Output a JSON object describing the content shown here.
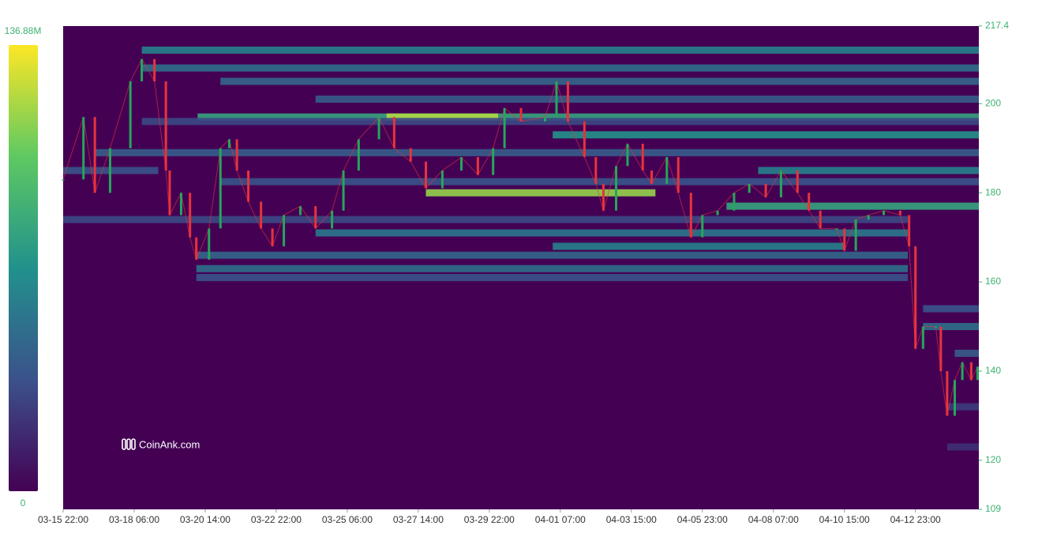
{
  "chart_data": {
    "type": "heatmap",
    "watermark": "CoinAnk.com",
    "colorscale": {
      "min": 0,
      "max": {
        "value": 136.88,
        "label": "136.88M"
      }
    },
    "xlim": [
      0,
      722
    ],
    "xticks": [
      {
        "value": 0,
        "label": "03-15 22:00"
      },
      {
        "value": 56,
        "label": "03-18 06:00"
      },
      {
        "value": 112,
        "label": "03-20 14:00"
      },
      {
        "value": 168,
        "label": "03-22 22:00"
      },
      {
        "value": 224,
        "label": "03-25 06:00"
      },
      {
        "value": 280,
        "label": "03-27 14:00"
      },
      {
        "value": 336,
        "label": "03-29 22:00"
      },
      {
        "value": 392,
        "label": "04-01 07:00"
      },
      {
        "value": 448,
        "label": "04-03 15:00"
      },
      {
        "value": 504,
        "label": "04-05 23:00"
      },
      {
        "value": 560,
        "label": "04-08 07:00"
      },
      {
        "value": 616,
        "label": "04-10 15:00"
      },
      {
        "value": 672,
        "label": "04-12 23:00"
      }
    ],
    "ylim": [
      109,
      217.4
    ],
    "yticks": [
      109,
      120,
      140,
      160,
      180,
      200,
      217.4
    ],
    "bands": [
      {
        "price": 212,
        "from": 62,
        "to": 722,
        "intensity": 60
      },
      {
        "price": 208,
        "from": 62,
        "to": 722,
        "intensity": 50
      },
      {
        "price": 205,
        "from": 124,
        "to": 722,
        "intensity": 45
      },
      {
        "price": 201,
        "from": 199,
        "to": 722,
        "intensity": 40
      },
      {
        "price": 197,
        "from": 106,
        "to": 722,
        "intensity": 80
      },
      {
        "price": 197,
        "from": 255,
        "to": 343,
        "intensity": 120
      },
      {
        "price": 196,
        "from": 62,
        "to": 722,
        "intensity": 30
      },
      {
        "price": 193,
        "from": 386,
        "to": 722,
        "intensity": 70
      },
      {
        "price": 189,
        "from": 25,
        "to": 722,
        "intensity": 40
      },
      {
        "price": 185,
        "from": 548,
        "to": 722,
        "intensity": 60
      },
      {
        "price": 185,
        "from": 0,
        "to": 75,
        "intensity": 35
      },
      {
        "price": 182.5,
        "from": 124,
        "to": 722,
        "intensity": 35
      },
      {
        "price": 180,
        "from": 286,
        "to": 467,
        "intensity": 115
      },
      {
        "price": 177,
        "from": 523,
        "to": 722,
        "intensity": 80
      },
      {
        "price": 174,
        "from": 0,
        "to": 666,
        "intensity": 30
      },
      {
        "price": 171,
        "from": 199,
        "to": 666,
        "intensity": 55
      },
      {
        "price": 168,
        "from": 386,
        "to": 616,
        "intensity": 60
      },
      {
        "price": 166,
        "from": 105,
        "to": 666,
        "intensity": 45
      },
      {
        "price": 163,
        "from": 105,
        "to": 666,
        "intensity": 50
      },
      {
        "price": 161,
        "from": 105,
        "to": 666,
        "intensity": 35
      },
      {
        "price": 154,
        "from": 678,
        "to": 722,
        "intensity": 35
      },
      {
        "price": 150,
        "from": 678,
        "to": 722,
        "intensity": 50
      },
      {
        "price": 144,
        "from": 703,
        "to": 722,
        "intensity": 40
      },
      {
        "price": 132,
        "from": 697,
        "to": 722,
        "intensity": 25
      },
      {
        "price": 123,
        "from": 697,
        "to": 722,
        "intensity": 20
      }
    ],
    "x": [
      0,
      16,
      25,
      37,
      53,
      62,
      72,
      81,
      84,
      93,
      100,
      105,
      115,
      124,
      131,
      137,
      146,
      156,
      165,
      174,
      187,
      199,
      212,
      221,
      233,
      249,
      261,
      274,
      286,
      299,
      314,
      327,
      339,
      348,
      361,
      380,
      389,
      398,
      411,
      420,
      426,
      436,
      445,
      457,
      464,
      476,
      485,
      495,
      504,
      516,
      529,
      541,
      554,
      566,
      579,
      588,
      597,
      610,
      616,
      625,
      635,
      647,
      660,
      667,
      672,
      678,
      688,
      692,
      697,
      703,
      709,
      716,
      721
    ],
    "series": [
      {
        "name": "Price",
        "up_color": "#26a65b",
        "down_color": "#e8333b",
        "values": [
          183,
          197,
          180,
          190,
          205,
          210,
          205,
          185,
          175,
          180,
          170,
          165,
          172,
          190,
          192,
          185,
          178,
          172,
          168,
          175,
          177,
          172,
          176,
          185,
          192,
          197,
          190,
          187,
          181,
          185,
          188,
          184,
          190,
          199,
          196,
          197,
          205,
          196,
          188,
          182,
          176,
          186,
          191,
          185,
          182,
          188,
          180,
          170,
          175,
          176,
          180,
          182,
          179,
          185,
          180,
          176,
          172,
          172,
          167,
          174,
          175,
          176,
          175,
          168,
          145,
          150,
          150,
          140,
          130,
          138,
          142,
          138,
          141
        ]
      }
    ]
  }
}
